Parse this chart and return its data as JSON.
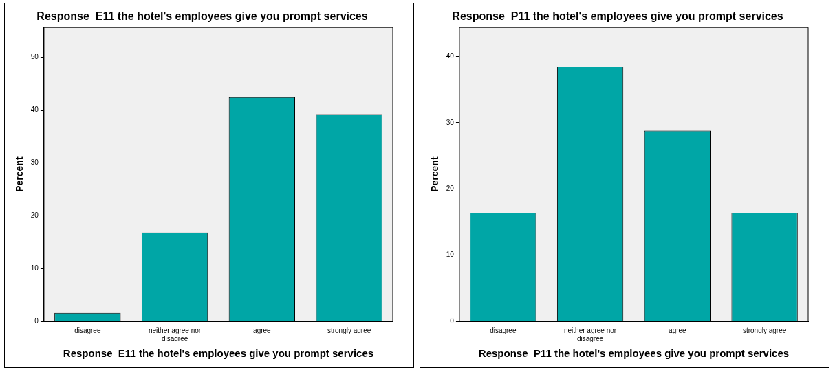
{
  "chart_data": [
    {
      "type": "bar",
      "title": "Response  E11 the hotel's employees give you prompt services",
      "xlabel": "Response  E11 the hotel's employees give you prompt services",
      "ylabel": "Percent",
      "categories": [
        "disagree",
        "neither agree nor disagree",
        "agree",
        "strongly agree"
      ],
      "values": [
        1.6,
        16.8,
        42.4,
        39.2
      ],
      "color": "#00a6a6",
      "ylim": [
        0,
        55.6
      ],
      "yticks": [
        0,
        10,
        20,
        30,
        40,
        50
      ],
      "grid": false,
      "legend": false
    },
    {
      "type": "bar",
      "title": "Response  P11 the hotel's employees give you prompt services",
      "xlabel": "Response  P11 the hotel's employees give you prompt services",
      "ylabel": "Percent",
      "categories": [
        "disagree",
        "neither agree nor disagree",
        "agree",
        "strongly agree"
      ],
      "values": [
        16.4,
        38.5,
        28.8,
        16.4
      ],
      "color": "#00a6a6",
      "ylim": [
        0,
        44.4
      ],
      "yticks": [
        0,
        10,
        20,
        30,
        40
      ],
      "grid": false,
      "legend": false
    }
  ]
}
